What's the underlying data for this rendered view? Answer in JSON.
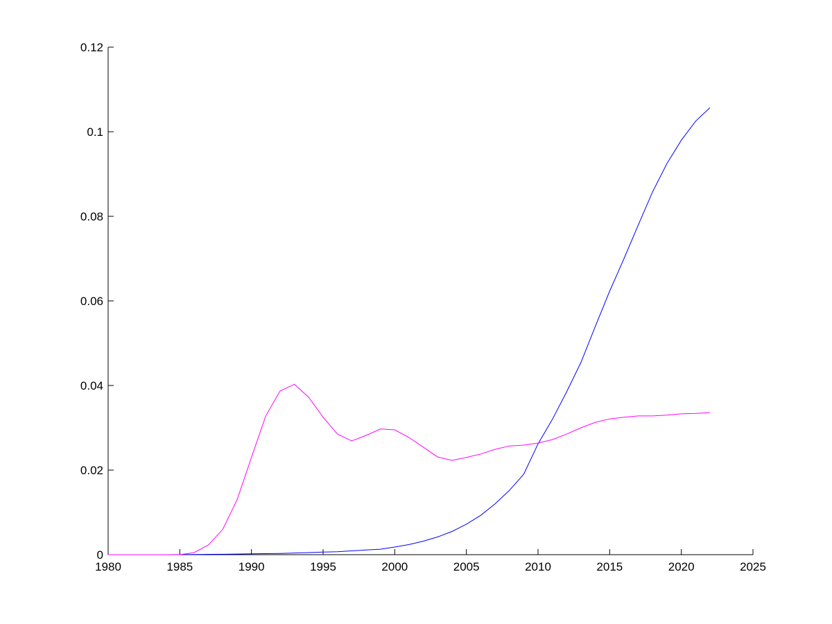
{
  "chart_data": {
    "type": "line",
    "title": "",
    "xlabel": "",
    "ylabel": "",
    "xlim": [
      1980,
      2025
    ],
    "ylim": [
      0,
      0.12
    ],
    "xticks": [
      1980,
      1985,
      1990,
      1995,
      2000,
      2005,
      2010,
      2015,
      2020,
      2025
    ],
    "yticks": [
      0,
      0.02,
      0.04,
      0.06,
      0.08,
      0.1,
      0.12
    ],
    "xtick_labels": [
      "1980",
      "1985",
      "1990",
      "1995",
      "2000",
      "2005",
      "2010",
      "2015",
      "2020",
      "2025"
    ],
    "ytick_labels": [
      "0",
      "0.02",
      "0.04",
      "0.06",
      "0.08",
      "0.1",
      "0.12"
    ],
    "grid": false,
    "x": [
      1980,
      1981,
      1982,
      1983,
      1984,
      1985,
      1986,
      1987,
      1988,
      1989,
      1990,
      1991,
      1992,
      1993,
      1994,
      1995,
      1996,
      1997,
      1998,
      1999,
      2000,
      2001,
      2002,
      2003,
      2004,
      2005,
      2006,
      2007,
      2008,
      2009,
      2010,
      2011,
      2012,
      2013,
      2014,
      2015,
      2016,
      2017,
      2018,
      2019,
      2020,
      2021,
      2022
    ],
    "series": [
      {
        "name": "series-1",
        "color": "#0000ff",
        "values": [
          0,
          0,
          0,
          0,
          0,
          2e-05,
          5e-05,
          8e-05,
          0.0001,
          0.00015,
          0.0002,
          0.00025,
          0.0003,
          0.0004,
          0.0005,
          0.0006,
          0.0007,
          0.0009,
          0.0011,
          0.0013,
          0.0018,
          0.0024,
          0.0032,
          0.0042,
          0.0055,
          0.0072,
          0.0093,
          0.012,
          0.0152,
          0.019,
          0.0262,
          0.032,
          0.0385,
          0.0455,
          0.054,
          0.0623,
          0.07,
          0.078,
          0.0858,
          0.0925,
          0.098,
          0.1025,
          0.1057
        ]
      },
      {
        "name": "series-2",
        "color": "#ff00ff",
        "values": [
          0,
          0,
          0,
          0,
          0,
          0,
          0.0005,
          0.0023,
          0.006,
          0.013,
          0.023,
          0.0328,
          0.0387,
          0.0403,
          0.0372,
          0.0325,
          0.0285,
          0.0269,
          0.0282,
          0.0297,
          0.0295,
          0.0277,
          0.0254,
          0.0231,
          0.0223,
          0.023,
          0.0238,
          0.0249,
          0.0257,
          0.0259,
          0.0264,
          0.0272,
          0.0285,
          0.03,
          0.0313,
          0.0321,
          0.0325,
          0.0328,
          0.0328,
          0.033,
          0.0333,
          0.0334,
          0.0336
        ]
      }
    ]
  }
}
